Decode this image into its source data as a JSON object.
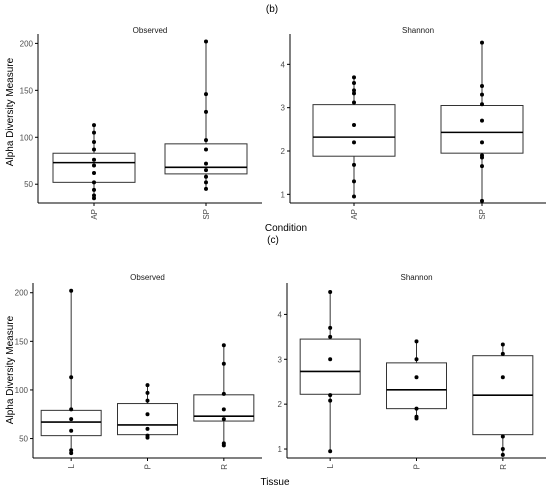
{
  "figure_b": {
    "label": "(b)",
    "ylabel": "Alpha Diversity Measure",
    "xlabel": "Condition"
  },
  "figure_c": {
    "label": "(c)",
    "ylabel": "Alpha Diversity Measure",
    "xlabel": "Tissue"
  },
  "chart_data": [
    {
      "type": "box",
      "panel": "(b)",
      "facet": "Observed",
      "categories": [
        "AP",
        "SP"
      ],
      "ylim": [
        30,
        210
      ],
      "yticks": [
        50,
        100,
        150,
        200
      ],
      "boxes": [
        {
          "category": "AP",
          "q1": 52,
          "median": 73,
          "q3": 83,
          "whisker_low": 35,
          "whisker_high": 113,
          "points": [
            113,
            105,
            95,
            87,
            76,
            70,
            62,
            52,
            44,
            38,
            35
          ]
        },
        {
          "category": "SP",
          "q1": 61,
          "median": 68,
          "q3": 93,
          "whisker_low": 45,
          "whisker_high": 202,
          "points": [
            202,
            146,
            127,
            97,
            87,
            72,
            65,
            58,
            52,
            45
          ]
        }
      ]
    },
    {
      "type": "box",
      "panel": "(b)",
      "facet": "Shannon",
      "categories": [
        "AP",
        "SP"
      ],
      "ylim": [
        0.8,
        4.7
      ],
      "yticks": [
        1,
        2,
        3,
        4
      ],
      "boxes": [
        {
          "category": "AP",
          "q1": 1.88,
          "median": 2.32,
          "q3": 3.07,
          "whisker_low": 0.95,
          "whisker_high": 3.7,
          "points": [
            3.7,
            3.57,
            3.4,
            3.33,
            3.12,
            2.6,
            2.2,
            1.68,
            1.3,
            0.95
          ]
        },
        {
          "category": "SP",
          "q1": 1.95,
          "median": 2.43,
          "q3": 3.05,
          "whisker_low": 0.85,
          "whisker_high": 4.5,
          "points": [
            4.5,
            3.5,
            3.3,
            3.08,
            2.7,
            2.2,
            1.9,
            1.85,
            1.65,
            0.85
          ]
        }
      ]
    },
    {
      "type": "box",
      "panel": "(c)",
      "facet": "Observed",
      "categories": [
        "L",
        "P",
        "R"
      ],
      "ylim": [
        30,
        210
      ],
      "yticks": [
        50,
        100,
        150,
        200
      ],
      "boxes": [
        {
          "category": "L",
          "q1": 53,
          "median": 67,
          "q3": 79,
          "whisker_low": 35,
          "whisker_high": 202,
          "points": [
            202,
            113,
            80,
            70,
            58,
            38,
            35
          ]
        },
        {
          "category": "P",
          "q1": 54,
          "median": 64,
          "q3": 86,
          "whisker_low": 51,
          "whisker_high": 105,
          "points": [
            105,
            97,
            89,
            75,
            60,
            53,
            51
          ]
        },
        {
          "category": "R",
          "q1": 68,
          "median": 73,
          "q3": 95,
          "whisker_low": 43,
          "whisker_high": 146,
          "points": [
            146,
            127,
            96,
            80,
            70,
            45,
            43
          ]
        }
      ]
    },
    {
      "type": "box",
      "panel": "(c)",
      "facet": "Shannon",
      "categories": [
        "L",
        "P",
        "R"
      ],
      "ylim": [
        0.8,
        4.7
      ],
      "yticks": [
        1,
        2,
        3,
        4
      ],
      "boxes": [
        {
          "category": "L",
          "q1": 2.22,
          "median": 2.73,
          "q3": 3.45,
          "whisker_low": 0.95,
          "whisker_high": 4.5,
          "points": [
            4.5,
            3.7,
            3.5,
            3.0,
            2.2,
            2.08,
            0.95
          ]
        },
        {
          "category": "P",
          "q1": 1.9,
          "median": 2.32,
          "q3": 2.92,
          "whisker_low": 1.68,
          "whisker_high": 3.4,
          "points": [
            3.4,
            3.0,
            2.6,
            1.9,
            1.72,
            1.68
          ]
        },
        {
          "category": "R",
          "q1": 1.32,
          "median": 2.2,
          "q3": 3.08,
          "whisker_low": 0.87,
          "whisker_high": 3.33,
          "points": [
            3.33,
            3.12,
            2.6,
            1.28,
            1.0,
            0.87
          ]
        }
      ]
    }
  ]
}
